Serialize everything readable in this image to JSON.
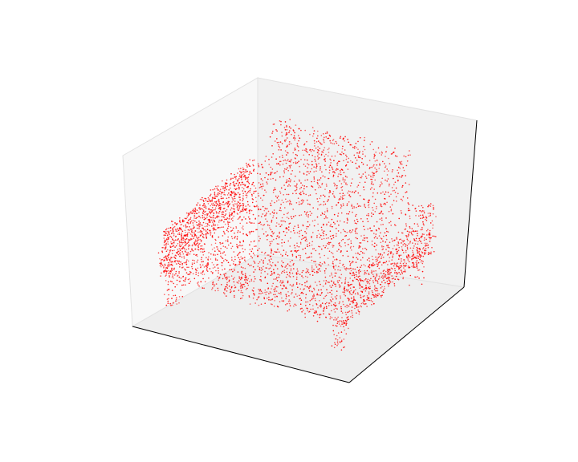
{
  "chart_data": {
    "type": "scatter",
    "projection": "3d",
    "title": "",
    "xlabel": "",
    "ylabel": "",
    "zlabel": "",
    "ticks_visible": false,
    "grid": false,
    "legend": "none",
    "xlim": [
      -1,
      1
    ],
    "ylim": [
      -1,
      1
    ],
    "zlim": [
      -1,
      1
    ],
    "marker_color": "#ff0000",
    "pane_color": "#f2f2f2",
    "edge_color": "#000000",
    "series": [
      {
        "shape": "bed point cloud",
        "parts": [
          {
            "part": "mattress-top",
            "x": [
              -0.85,
              0.85
            ],
            "y": [
              -0.85,
              0.65
            ],
            "z": [
              0.05,
              0.15
            ],
            "count": 1300
          },
          {
            "part": "front-side",
            "x": [
              -0.85,
              0.85
            ],
            "y": [
              -0.85,
              -0.85
            ],
            "z": [
              -0.45,
              0.1
            ],
            "count": 900
          },
          {
            "part": "right-side",
            "x": [
              0.85,
              0.85
            ],
            "y": [
              -0.85,
              0.65
            ],
            "z": [
              -0.45,
              0.1
            ],
            "count": 650
          },
          {
            "part": "left-side",
            "x": [
              -0.85,
              -0.85
            ],
            "y": [
              -0.85,
              0.65
            ],
            "z": [
              -0.45,
              0.1
            ],
            "count": 650
          },
          {
            "part": "headboard",
            "x": [
              -0.7,
              0.55
            ],
            "y": [
              0.65,
              0.72
            ],
            "z": [
              0.1,
              0.65
            ],
            "count": 500
          },
          {
            "part": "leg-front-left",
            "x": [
              -0.82,
              -0.72
            ],
            "y": [
              -0.82,
              -0.72
            ],
            "z": [
              -0.8,
              -0.45
            ],
            "count": 40
          },
          {
            "part": "leg-front-right",
            "x": [
              0.72,
              0.82
            ],
            "y": [
              -0.82,
              -0.72
            ],
            "z": [
              -0.8,
              -0.45
            ],
            "count": 45
          },
          {
            "part": "leg-back-right",
            "x": [
              0.72,
              0.82
            ],
            "y": [
              0.55,
              0.65
            ],
            "z": [
              -0.8,
              -0.45
            ],
            "count": 30
          }
        ]
      }
    ]
  }
}
